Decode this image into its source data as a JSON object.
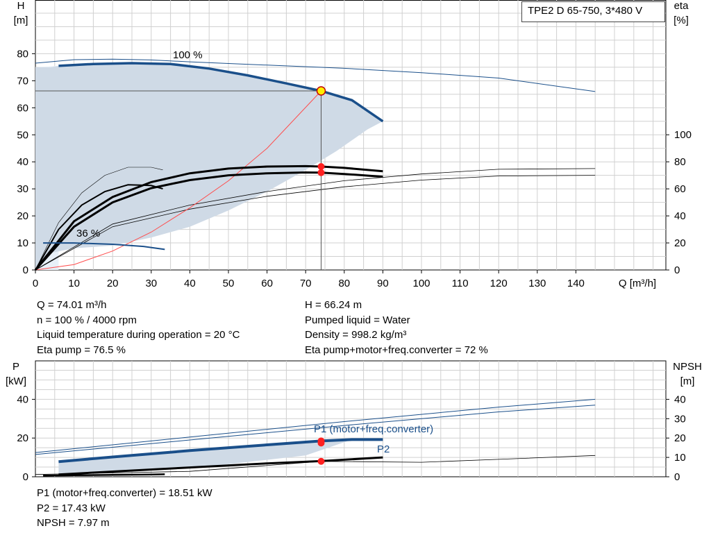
{
  "title": "TPE2 D 65-750, 3*480 V",
  "top_chart": {
    "y_left_label": "H",
    "y_left_unit": "[m]",
    "y_right_label": "eta",
    "y_right_unit": "[%]",
    "x_label": "Q [m³/h]",
    "curve_label_max": "100 %",
    "curve_label_min": "36 %"
  },
  "bottom_chart": {
    "y_left_label": "P",
    "y_left_unit": "[kW]",
    "y_right_label": "NPSH",
    "y_right_unit": "[m]",
    "p1_label": "P1 (motor+freq.converter)",
    "p2_label": "P2"
  },
  "info_left": [
    "Q = 74.01 m³/h",
    "n = 100 % / 4000 rpm",
    "Liquid temperature during operation = 20 °C",
    "Eta pump = 76.5 %"
  ],
  "info_right": [
    "H = 66.24 m",
    "Pumped liquid = Water",
    "Density = 998.2 kg/m³",
    "Eta pump+motor+freq.converter = 72 %"
  ],
  "info_bottom": [
    "P1 (motor+freq.converter) = 18.51 kW",
    "P2 = 17.43 kW",
    "NPSH = 7.97 m"
  ],
  "colors": {
    "head_curve": "#1a4f8a",
    "envelope_fill": "#cfdae6",
    "grid": "#d0d0d0",
    "system_curve": "#ff4d4d",
    "duty_point": "#ff2020",
    "duty_point_marker": "#ffee00"
  },
  "chart_data": [
    {
      "type": "line",
      "name": "QH",
      "xlim": [
        0,
        160
      ],
      "x_ticks": [
        0,
        10,
        20,
        30,
        40,
        50,
        60,
        70,
        80,
        90,
        100,
        110,
        120,
        130,
        140
      ],
      "ylim": [
        0,
        90
      ],
      "y_ticks": [
        0,
        10,
        20,
        30,
        40,
        50,
        60,
        70,
        80
      ],
      "y2lim": [
        0,
        144
      ],
      "y2_ticks": [
        0,
        20,
        40,
        60,
        80,
        100
      ],
      "grid": true,
      "head_100": {
        "x": [
          6,
          15,
          25,
          35,
          45,
          55,
          65,
          74.01,
          82,
          90
        ],
        "y": [
          75.5,
          76.2,
          76.5,
          76.2,
          74.5,
          72,
          69,
          66.24,
          62.8,
          55
        ]
      },
      "head_36": {
        "x": [
          2,
          10,
          20,
          28,
          33.5
        ],
        "y": [
          10,
          10,
          9.5,
          8.7,
          7.6
        ]
      },
      "head_max_thin": {
        "x": [
          0,
          10,
          20,
          30,
          40,
          60,
          80,
          100,
          120,
          145
        ],
        "y": [
          76.5,
          77.8,
          78,
          77.7,
          77,
          75.8,
          74.6,
          73,
          71,
          66
        ]
      },
      "envelope": {
        "x": [
          0,
          4,
          6,
          15,
          25,
          35,
          45,
          55,
          65,
          74.01,
          82,
          90,
          86,
          78,
          70,
          60,
          50,
          40,
          30,
          20,
          10,
          3,
          0
        ],
        "y": [
          75,
          75,
          75.5,
          76.2,
          76.5,
          76.2,
          74.5,
          72,
          69,
          66.24,
          62.8,
          55,
          52,
          44,
          37,
          29,
          22,
          16,
          12,
          9,
          8,
          6,
          0
        ]
      },
      "system_curve": {
        "x": [
          0,
          10,
          20,
          30,
          40,
          50,
          60,
          74.01
        ],
        "y": [
          0,
          2,
          7,
          14,
          23,
          33,
          45,
          66.24
        ]
      },
      "eta_pump_100": {
        "x": [
          0,
          10,
          20,
          30,
          40,
          50,
          60,
          70,
          74.01,
          80,
          90
        ],
        "y": [
          0,
          36,
          54,
          65,
          71.5,
          75,
          76.5,
          76.8,
          76.5,
          75.5,
          73
        ]
      },
      "eta_total_100": {
        "x": [
          0,
          10,
          20,
          30,
          40,
          50,
          60,
          70,
          74.01,
          80,
          90
        ],
        "y": [
          0,
          32,
          50,
          60.5,
          66.5,
          70,
          71.5,
          72.1,
          72,
          71,
          69
        ]
      },
      "eta_pump_thin": {
        "x": [
          0,
          6,
          12,
          18,
          24,
          30,
          33
        ],
        "y": [
          0,
          35,
          57,
          70,
          76,
          76,
          74
        ]
      },
      "eta_total_mid": {
        "x": [
          0,
          6,
          12,
          18,
          24,
          30,
          33
        ],
        "y": [
          0,
          30,
          48,
          58,
          63,
          62.5,
          60
        ]
      },
      "eta_thin_upper": {
        "x": [
          0,
          20,
          40,
          60,
          80,
          100,
          120,
          145
        ],
        "y": [
          0,
          34,
          48,
          58,
          66,
          71,
          74.5,
          75
        ]
      },
      "eta_thin_lower": {
        "x": [
          0,
          20,
          40,
          60,
          80,
          100,
          120,
          145
        ],
        "y": [
          0,
          32,
          45,
          54.5,
          61.5,
          66.5,
          69.5,
          70
        ]
      },
      "duty_point": {
        "x": 74.01,
        "y": 66.24,
        "eta_pump": 76.5,
        "eta_total": 72
      }
    },
    {
      "type": "line",
      "name": "P / NPSH",
      "xlim": [
        0,
        160
      ],
      "ylim": [
        0,
        50
      ],
      "y_ticks": [
        0,
        20,
        40
      ],
      "y2lim": [
        0,
        50
      ],
      "y2_ticks": [
        0,
        10,
        20,
        30,
        40
      ],
      "grid": true,
      "p1": {
        "x": [
          6,
          20,
          40,
          60,
          74.01,
          82,
          90
        ],
        "y": [
          7.8,
          10.2,
          13.5,
          16.5,
          18.51,
          19.2,
          19.2
        ]
      },
      "p2": {
        "x": [
          6,
          20,
          40,
          60,
          74.01,
          90
        ],
        "y": [
          7.0,
          9.4,
          12.6,
          15.5,
          17.43,
          18.6
        ]
      },
      "p1_min": {
        "x": [
          2,
          10,
          20,
          30,
          33.5
        ],
        "y": [
          0.6,
          0.8,
          1.0,
          1.2,
          1.3
        ]
      },
      "p2_line": {
        "x": [
          6,
          20,
          40,
          60,
          74.01,
          90
        ],
        "y": [
          1.2,
          2.7,
          4.8,
          6.9,
          8.1,
          10
        ]
      },
      "p1_thin_upper": {
        "x": [
          0,
          40,
          80,
          120,
          145
        ],
        "y": [
          12.5,
          20.5,
          28.5,
          36,
          40
        ]
      },
      "p1_thin_lower": {
        "x": [
          0,
          40,
          80,
          120,
          145
        ],
        "y": [
          11.5,
          19,
          26.5,
          33.5,
          37
        ]
      },
      "npsh": {
        "x": [
          0,
          40,
          74.01,
          100,
          120,
          145
        ],
        "y": [
          1.2,
          2.8,
          7.97,
          7.5,
          9,
          11
        ]
      },
      "p_envelope": {
        "x": [
          6,
          20,
          40,
          60,
          74.01,
          82,
          70,
          50,
          30,
          15,
          6
        ],
        "y": [
          7.8,
          10.2,
          13.5,
          16.5,
          18.51,
          19.2,
          11,
          6.5,
          3.5,
          1.8,
          1.0
        ]
      },
      "duty_point": {
        "x": 74.01,
        "p1": 18.51,
        "p2": 17.43,
        "npsh": 7.97
      }
    }
  ]
}
